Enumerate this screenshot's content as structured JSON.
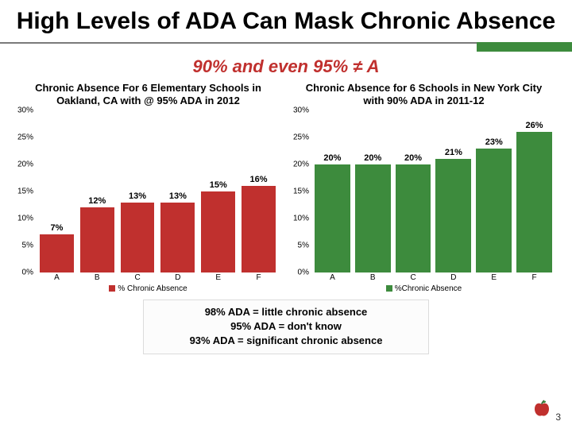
{
  "colors": {
    "title": "#000000",
    "subtitle": "#c0302e",
    "rule": "#7a7a7a",
    "accent": "#3d8b3d",
    "barA": "#c0302e",
    "barB": "#3d8b3d",
    "callout_border": "#dcdcdc",
    "callout_bg": "#fcfcfc",
    "text": "#000000"
  },
  "title": {
    "text": "High Levels of ADA Can Mask Chronic Absence",
    "fontsize": 30
  },
  "subtitle": {
    "text": "90% and even 95% ≠ A",
    "fontsize": 22
  },
  "chartA": {
    "type": "bar",
    "title": "Chronic Absence For 6 Elementary Schools in Oakland, CA with @ 95% ADA in 2012",
    "categories": [
      "A",
      "B",
      "C",
      "D",
      "E",
      "F"
    ],
    "values": [
      7,
      12,
      13,
      13,
      15,
      16
    ],
    "labels": [
      "7%",
      "12%",
      "13%",
      "13%",
      "15%",
      "16%"
    ],
    "ylim": [
      0,
      30
    ],
    "ytick_step": 5,
    "yticks": [
      "0%",
      "5%",
      "10%",
      "15%",
      "20%",
      "25%",
      "30%"
    ],
    "bar_color": "#c0302e",
    "legend_label": "% Chronic Absence"
  },
  "chartB": {
    "type": "bar",
    "title": "Chronic Absence for 6 Schools in New York City with 90% ADA in 2011-12",
    "categories": [
      "A",
      "B",
      "C",
      "D",
      "E",
      "F"
    ],
    "values": [
      20,
      20,
      20,
      21,
      23,
      26
    ],
    "labels": [
      "20%",
      "20%",
      "20%",
      "21%",
      "23%",
      "26%"
    ],
    "ylim": [
      0,
      30
    ],
    "ytick_step": 5,
    "yticks": [
      "0%",
      "5%",
      "10%",
      "15%",
      "20%",
      "25%",
      "30%"
    ],
    "bar_color": "#3d8b3d",
    "legend_label": "%Chronic Absence"
  },
  "callout": {
    "lines": [
      "98% ADA = little chronic absence",
      "95% ADA = don't know",
      "93% ADA = significant chronic absence"
    ]
  },
  "slide_number": "3"
}
